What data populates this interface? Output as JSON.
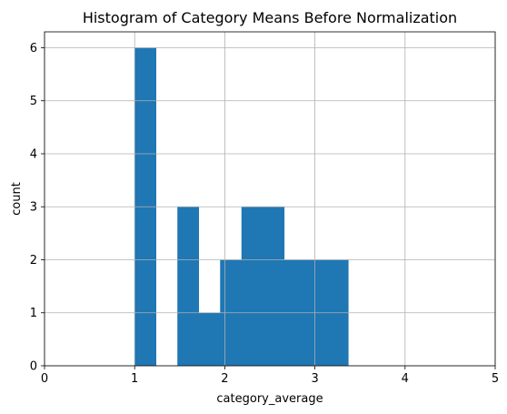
{
  "chart_data": {
    "type": "bar",
    "title": "Histogram of Category Means Before Normalization",
    "xlabel": "category_average",
    "ylabel": "count",
    "xlim": [
      0,
      5
    ],
    "ylim": [
      0,
      6.3
    ],
    "xticks": [
      "0",
      "1",
      "2",
      "3",
      "4",
      "5"
    ],
    "yticks": [
      "0",
      "1",
      "2",
      "3",
      "4",
      "5",
      "6"
    ],
    "grid": true,
    "bar_color": "#1f77b4",
    "bins": [
      {
        "x0": 1.0,
        "x1": 1.237,
        "count": 6
      },
      {
        "x0": 1.237,
        "x1": 1.474,
        "count": 0
      },
      {
        "x0": 1.474,
        "x1": 1.711,
        "count": 3
      },
      {
        "x0": 1.711,
        "x1": 1.948,
        "count": 1
      },
      {
        "x0": 1.948,
        "x1": 2.185,
        "count": 2
      },
      {
        "x0": 2.185,
        "x1": 2.422,
        "count": 3
      },
      {
        "x0": 2.422,
        "x1": 2.659,
        "count": 3
      },
      {
        "x0": 2.659,
        "x1": 2.896,
        "count": 2
      },
      {
        "x0": 2.896,
        "x1": 3.133,
        "count": 2
      },
      {
        "x0": 3.133,
        "x1": 3.37,
        "count": 2
      }
    ]
  }
}
